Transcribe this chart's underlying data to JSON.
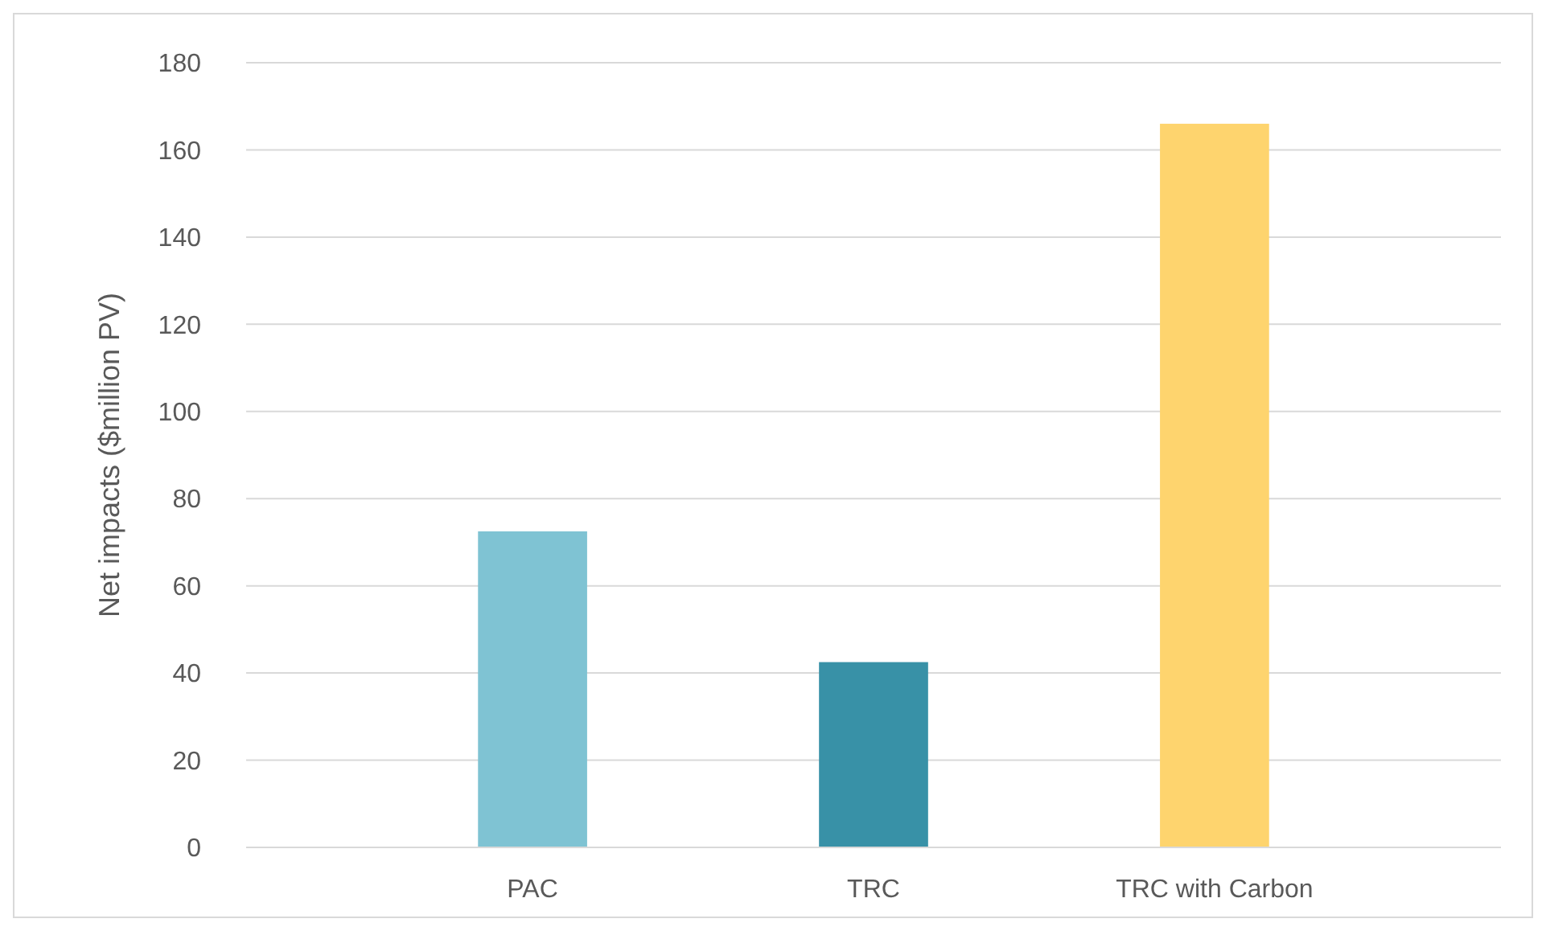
{
  "chart_data": {
    "type": "bar",
    "ylabel": "Net impacts ($million PV)",
    "categories": [
      "PAC",
      "TRC",
      "TRC with Carbon"
    ],
    "values": [
      72.5,
      42.5,
      166
    ],
    "colors": [
      "#7fc3d3",
      "#3891a7",
      "#fed46e"
    ],
    "ylim": [
      0,
      180
    ],
    "yticks": [
      0,
      20,
      40,
      60,
      80,
      100,
      120,
      140,
      160,
      180
    ],
    "grid": "y"
  }
}
